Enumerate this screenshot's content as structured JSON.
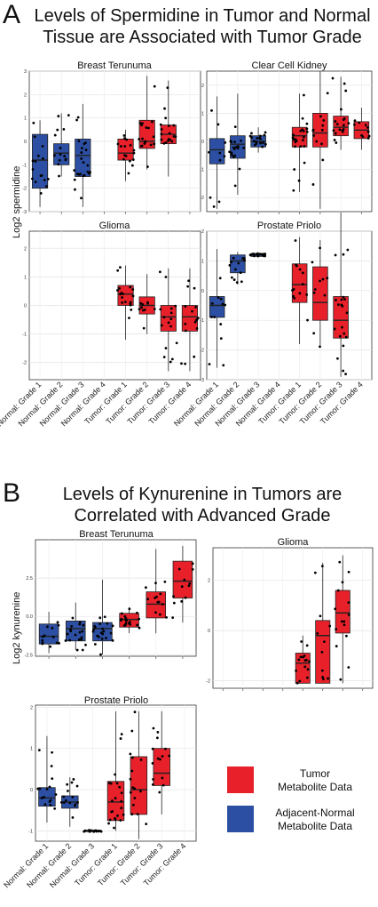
{
  "panels": {
    "A": {
      "letter": "A",
      "title_line1": "Levels of Spermidine in Tumor and Normal",
      "title_line2": "Tissue are Associated with Tumor Grade",
      "ylabel": "Log2 spermidine"
    },
    "B": {
      "letter": "B",
      "title_line1": "Levels of Kynurenine in Tumors are",
      "title_line2": "Correlated with Advanced Grade",
      "ylabel": "Log2 kynurenine"
    }
  },
  "legend": {
    "tumor_line1": "Tumor",
    "tumor_line2": "Metabolite Data",
    "normal_line1": "Adjacent-Normal",
    "normal_line2": "Metabolite Data",
    "tumor_color": "#e8202a",
    "normal_color": "#2c4fa3"
  },
  "chart_data": [
    {
      "type": "box",
      "panel": "A",
      "subplot": "Breast Terunuma",
      "categories": [
        "Normal: Grade 1",
        "Normal: Grade 2",
        "Normal: Grade 3",
        "Normal: Grade 4",
        "Tumor: Grade 1",
        "Tumor: Grade 2",
        "Tumor: Grade 3",
        "Tumor: Grade 4"
      ],
      "ylim": [
        -3,
        3
      ],
      "yticks": [
        "-3",
        "-2",
        "-1",
        "0",
        "1",
        "2",
        "3"
      ],
      "boxes": [
        {
          "group": "normal",
          "q1": -2.0,
          "median": -0.8,
          "q3": 0.3,
          "low": -2.8,
          "high": 0.9
        },
        {
          "group": "normal",
          "q1": -1.0,
          "median": -0.5,
          "q3": -0.1,
          "low": -1.5,
          "high": 1.2
        },
        {
          "group": "normal",
          "q1": -1.5,
          "median": -0.6,
          "q3": 0.1,
          "low": -2.8,
          "high": 1.6
        },
        null,
        {
          "group": "tumor",
          "q1": -0.8,
          "median": -0.5,
          "q3": 0.1,
          "low": -1.7,
          "high": 0.5
        },
        {
          "group": "tumor",
          "q1": -0.3,
          "median": 0.0,
          "q3": 0.9,
          "low": -1.2,
          "high": 2.8
        },
        {
          "group": "tumor",
          "q1": -0.1,
          "median": 0.3,
          "q3": 0.7,
          "low": -1.5,
          "high": 2.6
        },
        null
      ]
    },
    {
      "type": "box",
      "panel": "A",
      "subplot": "Clear Cell Kidney",
      "categories": [
        "Normal: Grade 1",
        "Normal: Grade 2",
        "Normal: Grade 3",
        "Normal: Grade 4",
        "Tumor: Grade 1",
        "Tumor: Grade 2",
        "Tumor: Grade 3",
        "Tumor: Grade 4"
      ],
      "ylim": [
        -2.5,
        2.5
      ],
      "yticks": [
        "-2",
        "-1",
        "0",
        "1",
        "2"
      ],
      "boxes": [
        {
          "group": "normal",
          "q1": -0.8,
          "median": -0.3,
          "q3": 0.1,
          "low": -2.4,
          "high": 1.6
        },
        {
          "group": "normal",
          "q1": -0.6,
          "median": -0.1,
          "q3": 0.2,
          "low": -1.9,
          "high": 1.7
        },
        {
          "group": "normal",
          "q1": -0.2,
          "median": 0.0,
          "q3": 0.2,
          "low": -0.4,
          "high": 0.5
        },
        null,
        {
          "group": "tumor",
          "q1": -0.2,
          "median": 0.2,
          "q3": 0.5,
          "low": -1.8,
          "high": 1.7
        },
        {
          "group": "tumor",
          "q1": -0.2,
          "median": 0.3,
          "q3": 1.0,
          "low": -2.4,
          "high": 2.5
        },
        {
          "group": "tumor",
          "q1": 0.2,
          "median": 0.5,
          "q3": 0.9,
          "low": -0.3,
          "high": 2.3
        },
        {
          "group": "tumor",
          "q1": 0.1,
          "median": 0.4,
          "q3": 0.7,
          "low": -0.3,
          "high": 1.2
        }
      ]
    },
    {
      "type": "box",
      "panel": "A",
      "subplot": "Glioma",
      "categories": [
        "Normal: Grade 1",
        "Normal: Grade 2",
        "Normal: Grade 3",
        "Normal: Grade 4",
        "Tumor: Grade 1",
        "Tumor: Grade 2",
        "Tumor: Grade 3",
        "Tumor: Grade 4"
      ],
      "ylim": [
        -2.6,
        2.6
      ],
      "yticks": [
        "-2",
        "-1",
        "0",
        "1",
        "2"
      ],
      "boxes": [
        null,
        null,
        null,
        null,
        {
          "group": "tumor",
          "q1": 0.0,
          "median": 0.4,
          "q3": 0.7,
          "low": -1.2,
          "high": 1.4
        },
        {
          "group": "tumor",
          "q1": -0.3,
          "median": 0.0,
          "q3": 0.3,
          "low": -1.0,
          "high": 1.1
        },
        {
          "group": "tumor",
          "q1": -0.9,
          "median": -0.4,
          "q3": 0.0,
          "low": -2.3,
          "high": 1.3
        },
        {
          "group": "tumor",
          "q1": -0.9,
          "median": -0.4,
          "q3": 0.0,
          "low": -2.3,
          "high": 1.3
        }
      ]
    },
    {
      "type": "box",
      "panel": "A",
      "subplot": "Prostate Priolo",
      "categories": [
        "Normal: Grade 1",
        "Normal: Grade 2",
        "Normal: Grade 3",
        "Normal: Grade 4",
        "Tumor: Grade 1",
        "Tumor: Grade 2",
        "Tumor: Grade 3",
        "Tumor: Grade 4"
      ],
      "ylim": [
        -3,
        2
      ],
      "yticks": [
        "-3",
        "-2",
        "-1",
        "0",
        "1",
        "2"
      ],
      "boxes": [
        {
          "group": "normal",
          "q1": -0.9,
          "median": -0.5,
          "q3": -0.2,
          "low": -2.6,
          "high": 1.4
        },
        {
          "group": "normal",
          "q1": 0.6,
          "median": 1.0,
          "q3": 1.2,
          "low": 0.2,
          "high": 1.3
        },
        {
          "group": "normal",
          "q1": 1.15,
          "median": 1.2,
          "q3": 1.25,
          "low": 1.15,
          "high": 1.25
        },
        null,
        {
          "group": "tumor",
          "q1": -0.4,
          "median": 0.2,
          "q3": 0.9,
          "low": -1.8,
          "high": 1.8
        },
        {
          "group": "tumor",
          "q1": -1.0,
          "median": -0.4,
          "q3": 0.8,
          "low": -1.9,
          "high": 1.7
        },
        {
          "group": "tumor",
          "q1": -1.6,
          "median": -1.0,
          "q3": -0.2,
          "low": -2.9,
          "high": 2.6
        },
        null
      ]
    },
    {
      "type": "box",
      "panel": "B",
      "subplot": "Breast Terunuma",
      "categories": [
        "Normal: Grade 1",
        "Normal: Grade 2",
        "Normal: Grade 3",
        "Tumor: Grade 1",
        "Tumor: Grade 2",
        "Tumor: Grade 3"
      ],
      "ylim": [
        -2.6,
        5
      ],
      "yticks": [
        "-2.5",
        "0.0",
        "2.5"
      ],
      "boxes": [
        {
          "group": "normal",
          "q1": -1.8,
          "median": -1.3,
          "q3": -0.5,
          "low": -2.4,
          "high": 0.3
        },
        {
          "group": "normal",
          "q1": -1.6,
          "median": -0.8,
          "q3": -0.3,
          "low": -2.2,
          "high": 0.9
        },
        {
          "group": "normal",
          "q1": -1.6,
          "median": -0.8,
          "q3": -0.4,
          "low": -2.5,
          "high": 2.4
        },
        {
          "group": "tumor",
          "q1": -0.7,
          "median": -0.2,
          "q3": 0.2,
          "low": -1.1,
          "high": 0.6
        },
        {
          "group": "tumor",
          "q1": -0.1,
          "median": 0.8,
          "q3": 1.6,
          "low": -1.1,
          "high": 4.4
        },
        {
          "group": "tumor",
          "q1": 1.2,
          "median": 2.3,
          "q3": 3.6,
          "low": -0.4,
          "high": 4.6
        }
      ]
    },
    {
      "type": "box",
      "panel": "B",
      "subplot": "Glioma",
      "categories": [
        "",
        "",
        "",
        "",
        "",
        "",
        "",
        ""
      ],
      "ylim": [
        -2.3,
        3.3
      ],
      "yticks": [
        "-2",
        "0",
        "2"
      ],
      "boxes": [
        null,
        null,
        null,
        null,
        {
          "group": "tumor",
          "q1": -2.1,
          "median": -1.3,
          "q3": -0.9,
          "low": -2.1,
          "high": -0.2
        },
        {
          "group": "tumor",
          "q1": -2.1,
          "median": -0.2,
          "q3": 0.4,
          "low": -2.1,
          "high": 2.7
        },
        {
          "group": "tumor",
          "q1": -0.1,
          "median": 0.7,
          "q3": 1.6,
          "low": -2.1,
          "high": 3.0
        },
        null
      ]
    },
    {
      "type": "box",
      "panel": "B",
      "subplot": "Prostate Priolo",
      "categories": [
        "Normal: Grade 1",
        "Normal: Grade 2",
        "Normal: Grade 3",
        "Tumor: Grade 1",
        "Tumor: Grade 2",
        "Tumor: Grade 3",
        "Tumor: Grade 4"
      ],
      "ylim": [
        -1.25,
        2.05
      ],
      "yticks": [
        "-1",
        "0",
        "1",
        "2"
      ],
      "boxes": [
        {
          "group": "normal",
          "q1": -0.4,
          "median": -0.2,
          "q3": 0.05,
          "low": -0.8,
          "high": 1.3
        },
        {
          "group": "normal",
          "q1": -0.45,
          "median": -0.3,
          "q3": -0.15,
          "low": -0.9,
          "high": 0.3
        },
        {
          "group": "normal",
          "q1": -1.02,
          "median": -1.0,
          "q3": -0.98,
          "low": -1.02,
          "high": -0.98
        },
        {
          "group": "tumor",
          "q1": -0.75,
          "median": -0.3,
          "q3": 0.2,
          "low": -1.0,
          "high": 1.9
        },
        {
          "group": "tumor",
          "q1": -0.6,
          "median": 0.0,
          "q3": 0.8,
          "low": -1.2,
          "high": 1.9
        },
        {
          "group": "tumor",
          "q1": 0.1,
          "median": 0.4,
          "q3": 1.0,
          "low": -0.6,
          "high": 1.9
        },
        null
      ]
    }
  ]
}
